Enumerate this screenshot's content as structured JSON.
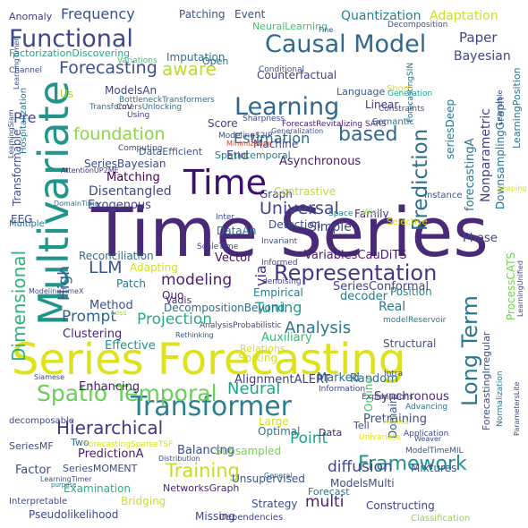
{
  "words": [
    {
      "t": "Time Series",
      "c": "#482a78"
    },
    {
      "t": "Series Forecasting",
      "c": "#dde318"
    },
    {
      "t": "Multivariate",
      "c": "#22958b"
    },
    {
      "t": "Time",
      "c": "#3b0f70"
    },
    {
      "t": "Causal Model",
      "c": "#30688e"
    },
    {
      "t": "Transformer",
      "c": "#2b7f8e"
    },
    {
      "t": "Representation",
      "c": "#453882"
    },
    {
      "t": "Spatio Temporal",
      "c": "#6bcd5a"
    },
    {
      "t": "Learning",
      "c": "#31678e"
    },
    {
      "t": "Functional",
      "c": "#404688"
    },
    {
      "t": "Dimensional",
      "c": "#2eb37c"
    },
    {
      "t": "Prediction",
      "c": "#2e6f8e"
    },
    {
      "t": "Long Term",
      "c": "#2a788e"
    },
    {
      "t": "Framework",
      "c": "#20928c"
    },
    {
      "t": "Training",
      "c": "#c2df23"
    },
    {
      "t": "based",
      "c": "#31688e"
    },
    {
      "t": "Universal",
      "c": "#3e4989"
    },
    {
      "t": "Forecasting",
      "c": "#3b528b"
    },
    {
      "t": "Frequency",
      "c": "#3b518b"
    },
    {
      "t": "Hierarchical",
      "c": "#453681"
    },
    {
      "t": "Estimation",
      "c": "#2d708e"
    },
    {
      "t": "Analysis",
      "c": "#2a778e"
    },
    {
      "t": "foundation",
      "c": "#8bd646"
    },
    {
      "t": "aware",
      "c": "#bade28"
    },
    {
      "t": "Neural",
      "c": "#22a785"
    },
    {
      "t": "Tuning",
      "c": "#1f9d8a"
    },
    {
      "t": "Projection",
      "c": "#28ae80"
    },
    {
      "t": "modeling",
      "c": "#481f70"
    },
    {
      "t": "diffusion",
      "c": "#3f4889"
    },
    {
      "t": "Prompt",
      "c": "#33638d"
    },
    {
      "t": "LLM",
      "c": "#39558c"
    },
    {
      "t": "Point",
      "c": "#1fa088"
    },
    {
      "t": "multi",
      "c": "#482475"
    },
    {
      "t": "High",
      "c": "#35608d"
    },
    {
      "t": "via",
      "c": "#46327e"
    },
    {
      "t": "Pre",
      "c": "#3f4788"
    },
    {
      "t": "Paper",
      "c": "#404588"
    },
    {
      "t": "Bayesian",
      "c": "#3f4889"
    },
    {
      "t": "Asynchronous",
      "c": "#481b6d"
    },
    {
      "t": "Disentangled",
      "c": "#3e4a89"
    },
    {
      "t": "Quantization",
      "c": "#27808e"
    },
    {
      "t": "Adaptation",
      "c": "#cae11f"
    },
    {
      "t": "Counterfactual",
      "c": "#424186"
    },
    {
      "t": "Synchronous",
      "c": "#472d7b"
    },
    {
      "t": "Pretraining",
      "c": "#3c4f8a"
    },
    {
      "t": "Enhancing",
      "c": "#481d6f"
    },
    {
      "t": "Random",
      "c": "#2f6c8e"
    },
    {
      "t": "Marked",
      "c": "#2c718e"
    },
    {
      "t": "Balancing",
      "c": "#3e4c8a"
    },
    {
      "t": "Empirical",
      "c": "#29798e"
    },
    {
      "t": "DecompositionBeyond",
      "c": "#2e6e8e"
    },
    {
      "t": "Auxiliary",
      "c": "#3aba76"
    },
    {
      "t": "Real",
      "c": "#2a788e"
    },
    {
      "t": "Clustering",
      "c": "#482576"
    },
    {
      "t": "Spiking",
      "c": "#d2e21b"
    },
    {
      "t": "AlignmentALERT",
      "c": "#433d84"
    },
    {
      "t": "Structural",
      "c": "#3b528b"
    },
    {
      "t": "Effective",
      "c": "#20928c"
    },
    {
      "t": "Method",
      "c": "#3d4d8a"
    },
    {
      "t": "Relations",
      "c": "#d8e219"
    },
    {
      "t": "VariablesCauDiTS",
      "c": "#481c6e"
    },
    {
      "t": "SeriesConformal",
      "c": "#3e4989"
    },
    {
      "t": "Reconciliation",
      "c": "#2c718e"
    },
    {
      "t": "Vector",
      "c": "#471365"
    },
    {
      "t": "Adapting",
      "c": "#d0e11c"
    },
    {
      "t": "Patch",
      "c": "#29798e"
    },
    {
      "t": "Quo",
      "c": "#481f70"
    },
    {
      "t": "decoder",
      "c": "#287c8e"
    },
    {
      "t": "Position",
      "c": "#25858e"
    },
    {
      "t": "ProcessCATS",
      "c": "#75d054"
    },
    {
      "t": "DataAn",
      "c": "#2d708e"
    },
    {
      "t": "Simple",
      "c": "#3f4889"
    },
    {
      "t": "Detection",
      "c": "#3e4c8a"
    },
    {
      "t": "Exogenous",
      "c": "#414287"
    },
    {
      "t": "Matching",
      "c": "#440154"
    },
    {
      "t": "End",
      "c": "#414487"
    },
    {
      "t": "Machine",
      "c": "#3f4788"
    },
    {
      "t": "DataEfficient",
      "c": "#38588c"
    },
    {
      "t": "Spatiotemporal",
      "c": "#2a768e"
    },
    {
      "t": "SeriesBayesian",
      "c": "#3e4a89"
    },
    {
      "t": "ModelsAn",
      "c": "#3f4788"
    },
    {
      "t": "Score",
      "c": "#433e85"
    },
    {
      "t": "Linear",
      "c": "#453781"
    },
    {
      "t": "Imputation",
      "c": "#2c728e"
    },
    {
      "t": "Patching",
      "c": "#38588c"
    },
    {
      "t": "Event",
      "c": "#3a548c"
    },
    {
      "t": "FactorizationDiscovering",
      "c": "#22a884"
    },
    {
      "t": "Open",
      "c": "#2f6b8e"
    },
    {
      "t": "NeuralLearning",
      "c": "#46c06f"
    },
    {
      "t": "Language",
      "c": "#375a8c"
    },
    {
      "t": "Anomaly",
      "c": "#433d84"
    },
    {
      "t": "SeriesMF",
      "c": "#3d4e8a"
    },
    {
      "t": "PredictionA",
      "c": "#481d6f"
    },
    {
      "t": "Factor",
      "c": "#3e4a89"
    },
    {
      "t": "SeriesMOMENT",
      "c": "#3e4c8a"
    },
    {
      "t": "Examination",
      "c": "#29af7f"
    },
    {
      "t": "Bridging",
      "c": "#d0e11c"
    },
    {
      "t": "Strategy",
      "c": "#3c508b"
    },
    {
      "t": "Pseudolikelihood",
      "c": "#3e4a89"
    },
    {
      "t": "NetworksGraph",
      "c": "#482878"
    },
    {
      "t": "Unsupervised",
      "c": "#3b518b"
    },
    {
      "t": "ModelsMulti",
      "c": "#3e4c8a"
    },
    {
      "t": "Constructing",
      "c": "#414487"
    },
    {
      "t": "Mixtures",
      "c": "#3c4f8a"
    },
    {
      "t": "Forecast",
      "c": "#2a768e"
    },
    {
      "t": "Missing",
      "c": "#3e4989"
    },
    {
      "t": "Subsampled",
      "c": "#75d054"
    },
    {
      "t": "Large",
      "c": "#d8e219"
    },
    {
      "t": "Optimal",
      "c": "#2a788e"
    },
    {
      "t": "Two",
      "c": "#2e6e8e"
    },
    {
      "t": "Data",
      "c": "#482777"
    },
    {
      "t": "Tell",
      "c": "#3e4c8a"
    },
    {
      "t": "Domain",
      "c": "#38598c"
    },
    {
      "t": "Online",
      "c": "#4ac16d"
    },
    {
      "t": "Graph",
      "c": "#433d84"
    },
    {
      "t": "Contrastive",
      "c": "#c2df23"
    },
    {
      "t": "Family",
      "c": "#472c7a"
    },
    {
      "t": "Phase",
      "c": "#404688"
    },
    {
      "t": "Instance",
      "c": "#3a548c"
    },
    {
      "t": "Nonparametric",
      "c": "#433e85"
    },
    {
      "t": "forecastingA",
      "c": "#2a788e"
    },
    {
      "t": "seriesDeep",
      "c": "#2a768e"
    },
    {
      "t": "DownsamplingGraph",
      "c": "#2d708e"
    },
    {
      "t": "LearningPosition",
      "c": "#2b748e"
    },
    {
      "t": "ForecastingIrregular",
      "c": "#3e4c8a"
    },
    {
      "t": "Dependencies",
      "c": "#433e85"
    },
    {
      "t": "Interpretable",
      "c": "#3d4e8a"
    },
    {
      "t": "Classification",
      "c": "#8fd744"
    },
    {
      "t": "decomposable",
      "c": "#3f4788"
    },
    {
      "t": "Multiple",
      "c": "#2c728e"
    },
    {
      "t": "EEG",
      "c": "#3d4e8a"
    },
    {
      "t": "Transformable",
      "c": "#3e4c8a"
    },
    {
      "t": "Us",
      "c": "#9dd93b"
    },
    {
      "t": "Vadis",
      "c": "#472f7d"
    },
    {
      "t": "Variations",
      "c": "#46c06f"
    },
    {
      "t": "Decomposition",
      "c": "#3b528b"
    },
    {
      "t": "Conditional",
      "c": "#3b528b"
    },
    {
      "t": "Short",
      "c": "#d8e219"
    },
    {
      "t": "Generation",
      "c": "#1f9e89"
    },
    {
      "t": "Constraints",
      "c": "#3e4c8a"
    },
    {
      "t": "Semantic",
      "c": "#2d708e"
    },
    {
      "t": "Sharpness",
      "c": "#3e4a89"
    },
    {
      "t": "ForecastRevitalizing SARS",
      "c": "#482475"
    },
    {
      "t": "ModelingS2IP",
      "c": "#3e4c8a"
    },
    {
      "t": "Generalization",
      "c": "#3b528b"
    },
    {
      "t": "Minimization",
      "c": "#ce4b2c"
    },
    {
      "t": "Computing",
      "c": "#3e4989"
    },
    {
      "t": "Hospitalization",
      "c": "#2a788e"
    },
    {
      "t": "BottleneckTransformers",
      "c": "#2c718e"
    },
    {
      "t": "TransformersUnlocking",
      "c": "#2e6e8e"
    },
    {
      "t": "Using",
      "c": "#443983"
    },
    {
      "t": "CoV",
      "c": "#433e85"
    },
    {
      "t": "AttentionUP2ME",
      "c": "#472f7d"
    },
    {
      "t": "LearningSiam",
      "c": "#3f4889"
    },
    {
      "t": "Channel",
      "c": "#3e4c8a"
    },
    {
      "t": "Invariant",
      "c": "#3b528b"
    },
    {
      "t": "Informed",
      "c": "#3e4989"
    },
    {
      "t": "Space",
      "c": "#2a788e"
    },
    {
      "t": "Selective",
      "c": "#d8e219"
    },
    {
      "t": "Wise",
      "c": "#8fd744"
    },
    {
      "t": "Inter",
      "c": "#3e4989"
    },
    {
      "t": "DomainTime",
      "c": "#2d708e"
    },
    {
      "t": "ScaleTime",
      "c": "#3e4c8a"
    },
    {
      "t": "denoising",
      "c": "#414487"
    },
    {
      "t": "ModelingTimeX",
      "c": "#3e4c8a"
    },
    {
      "t": "Rethinking",
      "c": "#3b528b"
    },
    {
      "t": "modelReservoir",
      "c": "#2a788e"
    },
    {
      "t": "Loss",
      "c": "#9dd93b"
    },
    {
      "t": "AnalysisProbabilistic",
      "c": "#3e4989"
    },
    {
      "t": "Information",
      "c": "#3e4989"
    },
    {
      "t": "Intra",
      "c": "#414487"
    },
    {
      "t": "Explanations",
      "c": "#3e4c8a"
    },
    {
      "t": "Advancing",
      "c": "#2d708e"
    },
    {
      "t": "Application",
      "c": "#3e4989"
    },
    {
      "t": "Univariate",
      "c": "#d8e219"
    },
    {
      "t": "Weaver",
      "c": "#3e4c8a"
    },
    {
      "t": "ModelTimeMIL",
      "c": "#3b528b"
    },
    {
      "t": "General",
      "c": "#2c718e"
    },
    {
      "t": "Distribution",
      "c": "#3e4989"
    },
    {
      "t": "ForecastingSparseTSF",
      "c": "#d8e219"
    },
    {
      "t": "LearningTimer",
      "c": "#3e4c8a"
    },
    {
      "t": "Siamese",
      "c": "#3e4989"
    },
    {
      "t": "Normalization",
      "c": "#2a788e"
    },
    {
      "t": "ParametersLite",
      "c": "#3e4c8a"
    },
    {
      "t": "LearningUnified",
      "c": "#3e4989"
    },
    {
      "t": "Shaping",
      "c": "#d8e219"
    },
    {
      "t": "Learnable",
      "c": "#3e4989"
    },
    {
      "t": "Fine",
      "c": "#3e4c8a"
    },
    {
      "t": "ForecastingSIN",
      "c": "#2c718e"
    },
    {
      "t": "LearningTimer",
      "c": "#3b528b"
    },
    {
      "t": "Potential",
      "c": "#d8e219"
    },
    {
      "t": "purpose",
      "c": "#2a788e"
    }
  ]
}
